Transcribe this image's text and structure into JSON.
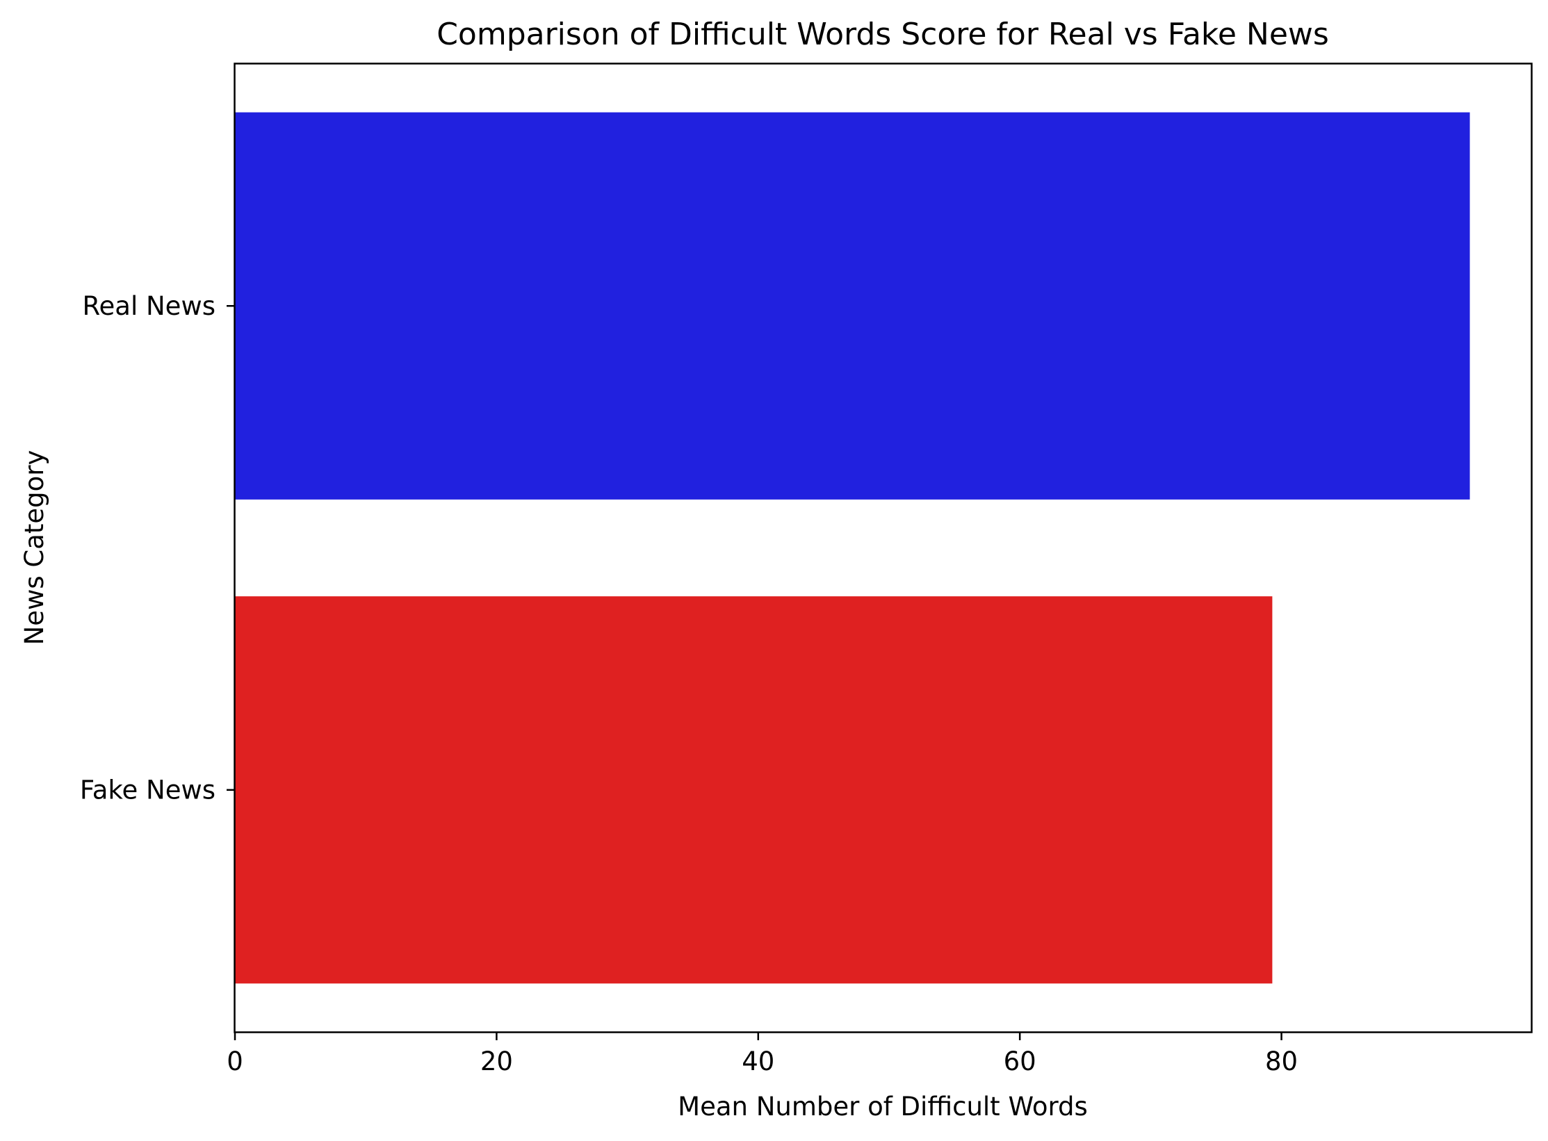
{
  "chart_data": {
    "type": "bar",
    "orientation": "horizontal",
    "title": "Comparison of Difficult Words Score for Real vs Fake News",
    "xlabel": "Mean Number of Difficult Words",
    "ylabel": "News Category",
    "categories": [
      "Real News",
      "Fake News"
    ],
    "values": [
      94.4,
      79.3
    ],
    "colors": [
      "#2121df",
      "#df2121"
    ],
    "xlim": [
      0,
      99.1
    ],
    "xticks": [
      0,
      20,
      40,
      60,
      80
    ],
    "grid": false,
    "legend": "none"
  }
}
